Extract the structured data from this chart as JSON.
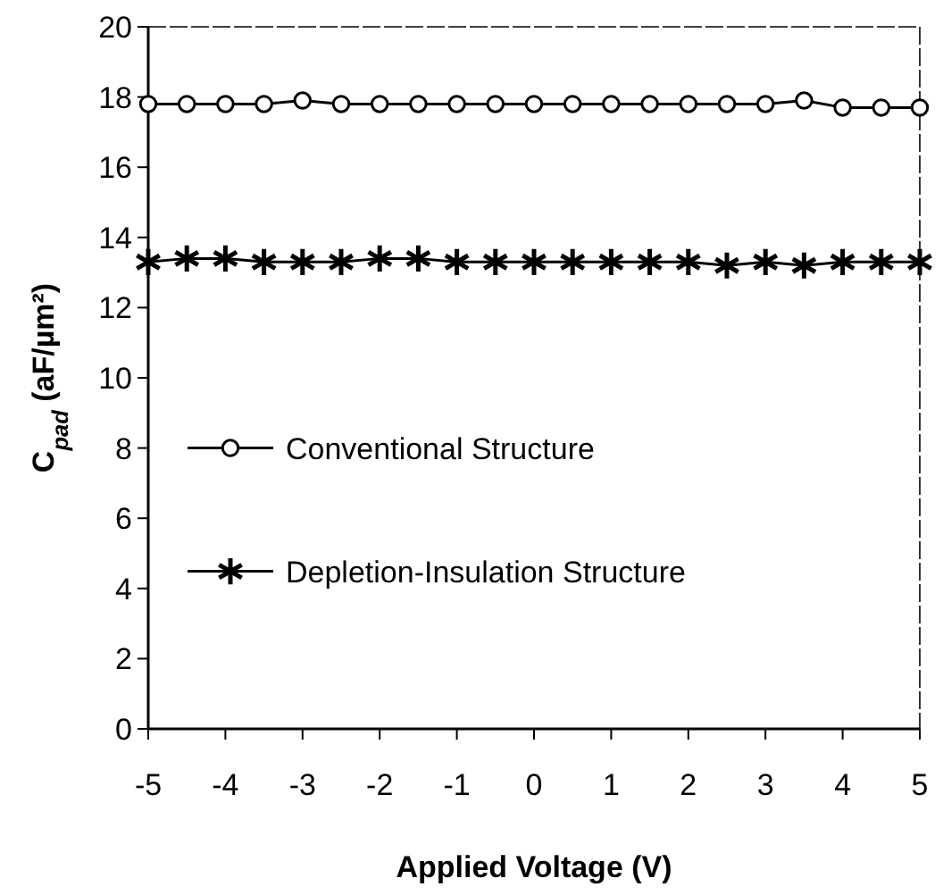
{
  "chart_data": {
    "type": "line",
    "xlabel": "Applied Voltage (V)",
    "ylabel": "C$_{pad}$ (aF/µm²)",
    "x": [
      -5,
      -4.5,
      -4,
      -3.5,
      -3,
      -2.5,
      -2,
      -1.5,
      -1,
      -0.5,
      0,
      0.5,
      1,
      1.5,
      2,
      2.5,
      3,
      3.5,
      4,
      4.5,
      5
    ],
    "series": [
      {
        "name": "Conventional Structure",
        "color": "#000000",
        "marker": "circle",
        "values": [
          17.8,
          17.8,
          17.8,
          17.8,
          17.9,
          17.8,
          17.8,
          17.8,
          17.8,
          17.8,
          17.8,
          17.8,
          17.8,
          17.8,
          17.8,
          17.8,
          17.8,
          17.9,
          17.7,
          17.7,
          17.7
        ]
      },
      {
        "name": "Depletion-Insulation Structure",
        "color": "#000000",
        "marker": "cross",
        "values": [
          13.3,
          13.4,
          13.4,
          13.3,
          13.3,
          13.3,
          13.4,
          13.4,
          13.3,
          13.3,
          13.3,
          13.3,
          13.3,
          13.3,
          13.3,
          13.2,
          13.3,
          13.2,
          13.3,
          13.3,
          13.3
        ]
      }
    ],
    "xlim": [
      -5,
      5
    ],
    "xticks": [
      -5,
      -4,
      -3,
      -2,
      -1,
      0,
      1,
      2,
      3,
      4,
      5
    ],
    "ylim": [
      0,
      20
    ],
    "yticks": [
      0,
      2,
      4,
      6,
      8,
      10,
      12,
      14,
      16,
      18,
      20
    ],
    "grid": false,
    "legend": "left",
    "line_style": "solid"
  }
}
